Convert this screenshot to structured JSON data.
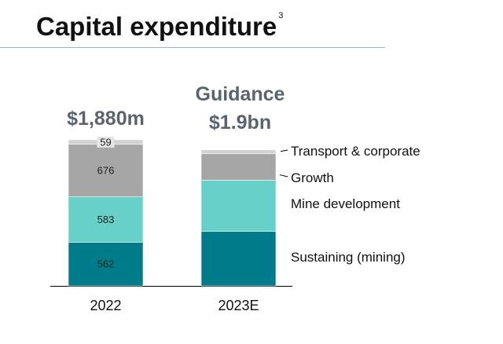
{
  "title": "Capital expenditure",
  "title_footnote": "3",
  "chart_data": {
    "type": "bar",
    "stacked": true,
    "categories": [
      "2022",
      "2023E"
    ],
    "series": [
      {
        "name": "Sustaining (mining)",
        "values": [
          562,
          700
        ],
        "color": "#007b8a"
      },
      {
        "name": "Mine development",
        "values": [
          583,
          660
        ],
        "color": "#66d0c9"
      },
      {
        "name": "Growth",
        "values": [
          676,
          340
        ],
        "color": "#a6a6a6"
      },
      {
        "name": "Transport & corporate",
        "values": [
          59,
          50
        ],
        "color": "#d2d2d2"
      }
    ],
    "data_labels": [
      [
        "562",
        "583",
        "676",
        "59"
      ],
      [
        "",
        "",
        "",
        ""
      ]
    ],
    "total_labels": [
      [
        "$1,880m"
      ],
      [
        "Guidance",
        "$1.9bn"
      ]
    ],
    "ylim": [
      0,
      1950
    ],
    "legend_position": "right"
  }
}
